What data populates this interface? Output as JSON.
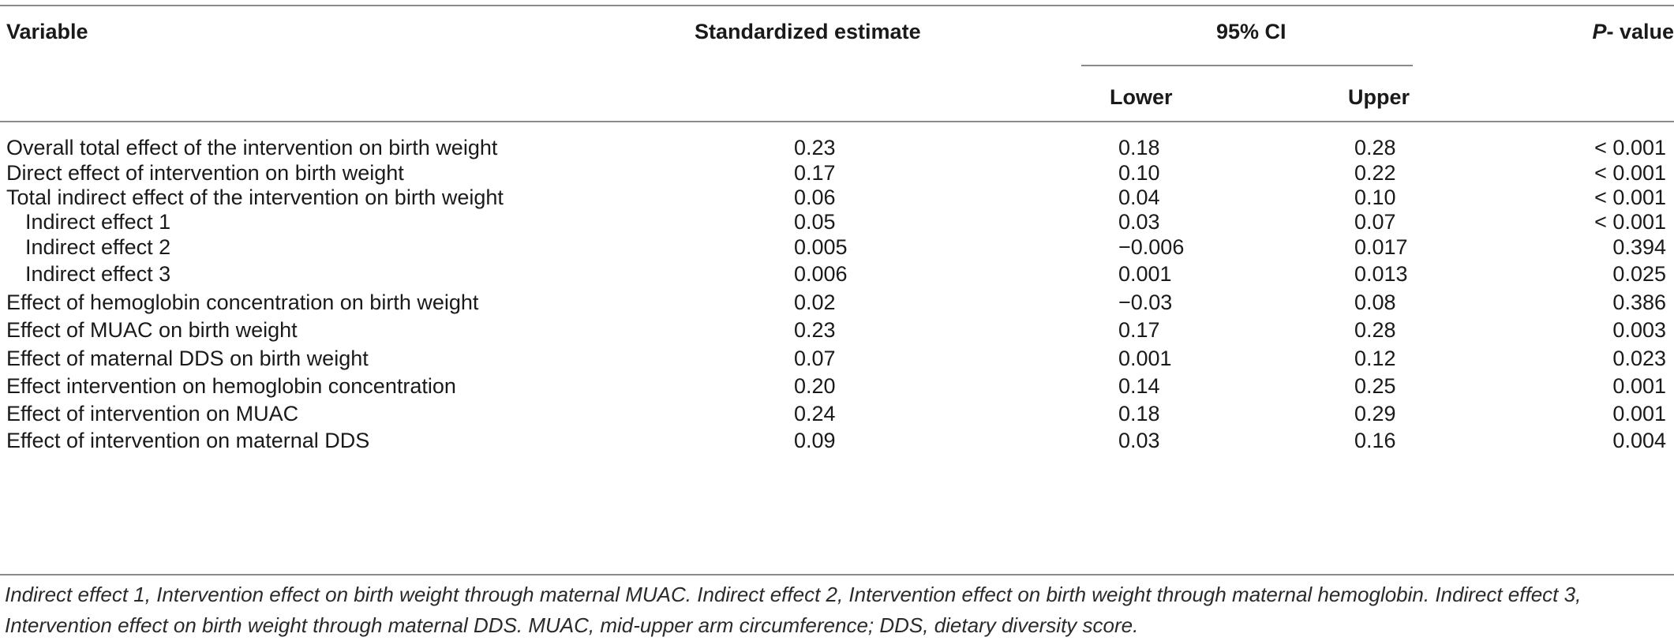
{
  "table": {
    "headers": {
      "variable": "Variable",
      "estimate": "Standardized estimate",
      "ci": "95% CI",
      "lower": "Lower",
      "upper": "Upper",
      "p_italic": "P",
      "p_rest": "- value"
    },
    "rows": [
      {
        "variable": "Overall total effect of the intervention on birth weight",
        "estimate": "0.23",
        "lower": "0.18",
        "upper": "0.28",
        "p": "< 0.001"
      },
      {
        "variable": "Direct effect of intervention on birth weight",
        "estimate": "0.17",
        "lower": "0.10",
        "upper": "0.22",
        "p": "< 0.001"
      },
      {
        "variable": "Total indirect effect of the intervention on birth weight",
        "estimate": "0.06",
        "lower": "0.04",
        "upper": "0.10",
        "p": "< 0.001"
      },
      {
        "variable": "Indirect effect 1",
        "estimate": "0.05",
        "lower": "0.03",
        "upper": "0.07",
        "p": "< 0.001"
      },
      {
        "variable": "Indirect effect 2",
        "estimate": "0.005",
        "lower": "−0.006",
        "upper": "0.017",
        "p": "0.394"
      },
      {
        "variable": "Indirect effect 3",
        "estimate": "0.006",
        "lower": "0.001",
        "upper": "0.013",
        "p": "0.025"
      },
      {
        "variable": "Effect of hemoglobin concentration on birth weight",
        "estimate": "0.02",
        "lower": "−0.03",
        "upper": "0.08",
        "p": "0.386"
      },
      {
        "variable": "Effect of MUAC on birth weight",
        "estimate": "0.23",
        "lower": "0.17",
        "upper": "0.28",
        "p": "0.003"
      },
      {
        "variable": "Effect of maternal DDS on birth weight",
        "estimate": "0.07",
        "lower": "0.001",
        "upper": "0.12",
        "p": "0.023"
      },
      {
        "variable": "Effect intervention on hemoglobin concentration",
        "estimate": "0.20",
        "lower": "0.14",
        "upper": "0.25",
        "p": "0.001"
      },
      {
        "variable": "Effect of intervention on MUAC",
        "estimate": "0.24",
        "lower": "0.18",
        "upper": "0.29",
        "p": "0.001"
      },
      {
        "variable": "Effect of intervention on maternal DDS",
        "estimate": "0.09",
        "lower": "0.03",
        "upper": "0.16",
        "p": "0.004"
      }
    ],
    "footnote": "Indirect effect 1, Intervention effect on birth weight through maternal MUAC. Indirect effect 2, Intervention effect on birth weight through maternal hemoglobin. Indirect effect 3, Intervention effect on birth weight through maternal DDS. MUAC, mid-upper arm circumference; DDS, dietary diversity score."
  }
}
